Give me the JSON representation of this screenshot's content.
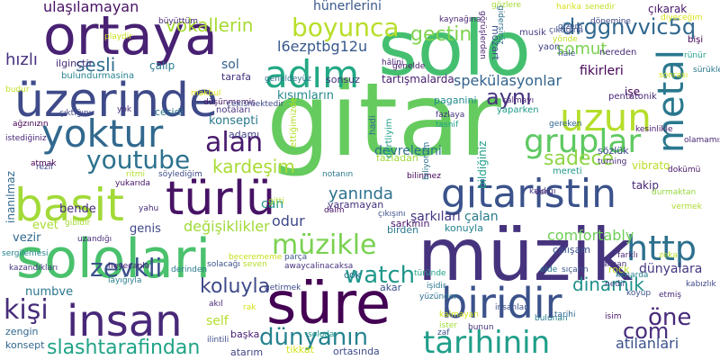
{
  "words": [
    {
      "text": "solo",
      "color": "#44bf70"
    },
    {
      "text": "gitar",
      "color": "#65cb5e"
    },
    {
      "text": "müzik",
      "color": "#46337e"
    },
    {
      "text": "ortaya",
      "color": "#482173"
    },
    {
      "text": "sololari",
      "color": "#4ac16d"
    },
    {
      "text": "süre",
      "color": "#440154"
    },
    {
      "text": "türlü",
      "color": "#471365"
    },
    {
      "text": "üzerinde",
      "color": "#3e4a89"
    },
    {
      "text": "basit",
      "color": "#a2da37"
    },
    {
      "text": "gitaristin",
      "color": "#3b528b"
    },
    {
      "text": "yoktur",
      "color": "#31688e"
    },
    {
      "text": "insan",
      "color": "#482878"
    },
    {
      "text": "biridir",
      "color": "#3b528b"
    },
    {
      "text": "adım",
      "color": "#22a884"
    },
    {
      "text": "uzun",
      "color": "#b5de2b"
    },
    {
      "text": "metal",
      "color": "#2a788e"
    },
    {
      "text": "gruplar",
      "color": "#5ec962"
    },
    {
      "text": "müzikle",
      "color": "#7ad151"
    },
    {
      "text": "alan",
      "color": "#481a6c"
    },
    {
      "text": "youtube",
      "color": "#2c728e"
    },
    {
      "text": "tarihinin",
      "color": "#1f9e89"
    },
    {
      "text": "http",
      "color": "#2d708e"
    },
    {
      "text": "boyunca",
      "color": "#b8de29"
    },
    {
      "text": "watch",
      "color": "#1f988b"
    },
    {
      "text": "zevkli",
      "color": "#3b528b"
    },
    {
      "text": "kişi",
      "color": "#472d7b"
    },
    {
      "text": "dünyanın",
      "color": "#25838e"
    },
    {
      "text": "slashtarafindan",
      "color": "#20a386"
    },
    {
      "text": "koluyla",
      "color": "#3e4a89"
    },
    {
      "text": "dinamik",
      "color": "#21918c"
    },
    {
      "text": "com",
      "color": "#472d7b"
    },
    {
      "text": "öne",
      "color": "#472a7a"
    },
    {
      "text": "aynı",
      "color": "#46327e"
    },
    {
      "text": "sesli",
      "color": "#2e6e8e"
    },
    {
      "text": "sadece",
      "color": "#8ed645"
    },
    {
      "text": "gectin",
      "color": "#7fd34e"
    },
    {
      "text": "vokallerin",
      "color": "#a8db34"
    },
    {
      "text": "ulaşılamayan",
      "color": "#471164"
    },
    {
      "text": "drggnvvic5q",
      "color": "#31688e"
    },
    {
      "text": "somut",
      "color": "#7ad151"
    },
    {
      "text": "l6ezptbg12u",
      "color": "#38588c"
    },
    {
      "text": "spekülasyonlar",
      "color": "#33638d"
    },
    {
      "text": "kardeşim",
      "color": "#a8db34"
    },
    {
      "text": "yanında",
      "color": "#2c728e"
    },
    {
      "text": "comfortably",
      "color": "#6ece58"
    },
    {
      "text": "değişiklikler",
      "color": "#a0da39"
    },
    {
      "text": "odur",
      "color": "#3e4989"
    },
    {
      "text": "hızlı",
      "color": "#46307e"
    },
    {
      "text": "sol",
      "color": "#33638d"
    },
    {
      "text": "hünerlerini",
      "color": "#38588c"
    },
    {
      "text": "fikirleri",
      "color": "#440154"
    },
    {
      "text": "dünyalara",
      "color": "#453781"
    },
    {
      "text": "devrelerini",
      "color": "#2d708e"
    },
    {
      "text": "çalan",
      "color": "#287c8e"
    },
    {
      "text": "şarkıları",
      "color": "#453581"
    },
    {
      "text": "numbve",
      "color": "#2a768e"
    },
    {
      "text": "vezir",
      "color": "#31688e"
    },
    {
      "text": "genis",
      "color": "#3f4788"
    },
    {
      "text": "bende",
      "color": "#472d7b"
    },
    {
      "text": "evet",
      "color": "#aadc32"
    },
    {
      "text": "konsepti",
      "color": "#2a788e"
    },
    {
      "text": "can",
      "color": "#1f948c"
    },
    {
      "text": "self",
      "color": "#b5de2b"
    },
    {
      "text": "atilanlari",
      "color": "#3b528b"
    },
    {
      "text": "işe",
      "color": "#440154"
    },
    {
      "text": "vibrato",
      "color": "#b8de29"
    },
    {
      "text": "takip",
      "color": "#482878"
    },
    {
      "text": "kısımların",
      "color": "#23898e"
    },
    {
      "text": "tartışmalarda",
      "color": "#481f70"
    },
    {
      "text": "çıkarak",
      "color": "#481769"
    },
    {
      "text": "sözlük",
      "color": "#3e4989"
    },
    {
      "text": "ortasında",
      "color": "#3e4a89"
    },
    {
      "text": "başka",
      "color": "#482173"
    },
    {
      "text": "tikkat",
      "color": "#d2e21b"
    },
    {
      "text": "atarım",
      "color": "#414487"
    },
    {
      "text": "rock",
      "color": "#b8de29"
    },
    {
      "text": "yaramayan",
      "color": "#46327e"
    },
    {
      "text": "çalışam",
      "color": "#3b528b"
    },
    {
      "text": "inanılmaz",
      "color": "#31688e"
    },
    {
      "text": "çalıp",
      "color": "#29798e"
    },
    {
      "text": "sonsuz",
      "color": "#46327e"
    },
    {
      "text": "mozart",
      "color": "#3b528b"
    },
    {
      "text": "adamı",
      "color": "#414487"
    },
    {
      "text": "tarafa",
      "color": "#46327e"
    },
    {
      "text": "paganini",
      "color": "#228b8d"
    },
    {
      "text": "fazladan",
      "color": "#9fda3a"
    },
    {
      "text": "bildiğiniz",
      "color": "#1fa088"
    },
    {
      "text": "zengin",
      "color": "#31688e"
    },
    {
      "text": "konsept",
      "color": "#31688e"
    },
    {
      "text": "birden",
      "color": "#2a788e"
    },
    {
      "text": "akar",
      "color": "#3b528b"
    },
    {
      "text": "cok",
      "color": "#2d708e"
    },
    {
      "text": "konuyla",
      "color": "#277f8e"
    },
    {
      "text": "sarkinin",
      "color": "#481769"
    },
    {
      "text": "cesidi",
      "color": "#2a788e"
    },
    {
      "text": "yaon",
      "color": "#414487"
    },
    {
      "text": "nereden",
      "color": "#472d7b"
    },
    {
      "text": "pentatonik",
      "color": "#482878"
    },
    {
      "text": "musik",
      "color": "#433e85"
    },
    {
      "text": "bişi",
      "color": "#440154"
    },
    {
      "text": "ilginçtir",
      "color": "#472d7b"
    },
    {
      "text": "bulundurmasina",
      "color": "#26828e"
    },
    {
      "text": "notaları",
      "color": "#46327e"
    },
    {
      "text": "yaparken",
      "color": "#1f9a8a"
    },
    {
      "text": "senedir",
      "color": "#c2df23"
    },
    {
      "text": "harika",
      "color": "#d8e219"
    },
    {
      "text": "kaynağına",
      "color": "#482475"
    },
    {
      "text": "gözlere",
      "color": "#a5db36"
    },
    {
      "text": "dönemine",
      "color": "#3f4889"
    },
    {
      "text": "sonrası",
      "color": "#d2e21b"
    },
    {
      "text": "rünür",
      "color": "#1f9e89"
    },
    {
      "text": "gereken",
      "color": "#33638d"
    },
    {
      "text": "kesinlikle",
      "color": "#481769"
    },
    {
      "text": "olamamışlarin",
      "color": "#482878"
    },
    {
      "text": "dokümü",
      "color": "#481668"
    },
    {
      "text": "durmaktan",
      "color": "#95d840"
    },
    {
      "text": "vermek",
      "color": "#addc30"
    },
    {
      "text": "zeka",
      "color": "#b8de29"
    },
    {
      "text": "çalınan",
      "color": "#46327e"
    },
    {
      "text": "kenarda",
      "color": "#26828e"
    },
    {
      "text": "etmiş",
      "color": "#482878"
    },
    {
      "text": "kabızlık",
      "color": "#3e4989"
    },
    {
      "text": "isim",
      "color": "#471365"
    },
    {
      "text": "ister",
      "color": "#a2da37"
    },
    {
      "text": "insanlar",
      "color": "#3b528b"
    },
    {
      "text": "bunun",
      "color": "#46327e"
    },
    {
      "text": "yüzünden",
      "color": "#2d708e"
    },
    {
      "text": "türünde",
      "color": "#1fa088"
    },
    {
      "text": "getirmek",
      "color": "#3e4a89"
    },
    {
      "text": "akıl",
      "color": "#482878"
    },
    {
      "text": "rak",
      "color": "#d5e21a"
    },
    {
      "text": "ilintili",
      "color": "#3e4989"
    },
    {
      "text": "layığıyla",
      "color": "#287d8e"
    },
    {
      "text": "sergilemesi",
      "color": "#25848e"
    },
    {
      "text": "kazandıkları",
      "color": "#453882"
    },
    {
      "text": "çıktığını",
      "color": "#404688"
    },
    {
      "text": "ağzınızın",
      "color": "#440154"
    },
    {
      "text": "istediğiniz",
      "color": "#482677"
    },
    {
      "text": "rezil",
      "color": "#3e4989"
    },
    {
      "text": "atmak",
      "color": "#440154"
    },
    {
      "text": "söylediğim",
      "color": "#3e4989"
    },
    {
      "text": "ritmi",
      "color": "#b5de2b"
    },
    {
      "text": "derinden",
      "color": "#2a788e"
    },
    {
      "text": "heyecanla",
      "color": "#482475"
    },
    {
      "text": "uzandığı",
      "color": "#472d7b"
    },
    {
      "text": "parça",
      "color": "#3b528b"
    },
    {
      "text": "awaycalinacaksa",
      "color": "#46327e"
    },
    {
      "text": "işidir",
      "color": "#2a788e"
    },
    {
      "text": "notanın",
      "color": "#2a788e"
    },
    {
      "text": "çıkışını",
      "color": "#3b528b"
    },
    {
      "text": "daim",
      "color": "#471365"
    },
    {
      "text": "soloda",
      "color": "#1f948c"
    },
    {
      "text": "mereti",
      "color": "#1f988b"
    },
    {
      "text": "kaldığı",
      "color": "#443983"
    },
    {
      "text": "ettiğimizde",
      "color": "#b5de2b"
    },
    {
      "text": "dertliyim",
      "color": "#1fa088"
    },
    {
      "text": "hadi",
      "color": "#31688e"
    },
    {
      "text": "bulunan",
      "color": "#277e8e"
    },
    {
      "text": "elde",
      "color": "#2a788e"
    },
    {
      "text": "sıçarın",
      "color": "#3b528b"
    },
    {
      "text": "turning",
      "color": "#482878"
    },
    {
      "text": "gidersiniz",
      "color": "#2d708e"
    },
    {
      "text": "hale",
      "color": "#3b528b"
    },
    {
      "text": "görüşlerden",
      "color": "#481f70"
    },
    {
      "text": "tarihi",
      "color": "#31688e"
    },
    {
      "text": "zaf",
      "color": "#3b528b"
    },
    {
      "text": "farklı",
      "color": "#482677"
    },
    {
      "text": "nedir",
      "color": "#414487"
    },
    {
      "text": "koyup",
      "color": "#3b528b"
    },
    {
      "text": "büyüttüm",
      "color": "#482878"
    },
    {
      "text": "geneldeyüz",
      "color": "#2d708e"
    },
    {
      "text": "düşünmemiş",
      "color": "#481668"
    },
    {
      "text": "playdir",
      "color": "#c8e020"
    },
    {
      "text": "budur",
      "color": "#c2df23"
    },
    {
      "text": "makbul",
      "color": "#dde318"
    },
    {
      "text": "cekismektedir",
      "color": "#3e4989"
    },
    {
      "text": "gitti",
      "color": "#addc30"
    },
    {
      "text": "yukarıda",
      "color": "#481467"
    },
    {
      "text": "yahu",
      "color": "#472d7b"
    },
    {
      "text": "gibidir",
      "color": "#a8db34"
    },
    {
      "text": "seven",
      "color": "#b5de2b"
    },
    {
      "text": "becerememe",
      "color": "#c8e020"
    },
    {
      "text": "kalmayan",
      "color": "#d2e21b"
    },
    {
      "text": "solacağı",
      "color": "#3b528b"
    },
    {
      "text": "tasnif",
      "color": "#1fa088"
    },
    {
      "text": "fazlaya",
      "color": "#46327e"
    },
    {
      "text": "bilinmez",
      "color": "#440154"
    },
    {
      "text": "biliyorum",
      "color": "#2d708e"
    },
    {
      "text": "veri",
      "color": "#482878"
    },
    {
      "text": "hâlini",
      "color": "#482173"
    },
    {
      "text": "çalmayı",
      "color": "#482878"
    },
    {
      "text": "diyeceğim",
      "color": "#d8e219"
    },
    {
      "text": "yok",
      "color": "#472d7b"
    },
    {
      "text": "genelde",
      "color": "#481769"
    },
    {
      "text": "sürükler",
      "color": "#2a788e"
    },
    {
      "text": "çıktığına",
      "color": "#3e4989"
    },
    {
      "text": "gizem",
      "color": "#3b528b"
    },
    {
      "text": "yönde",
      "color": "#c2df23"
    }
  ]
}
